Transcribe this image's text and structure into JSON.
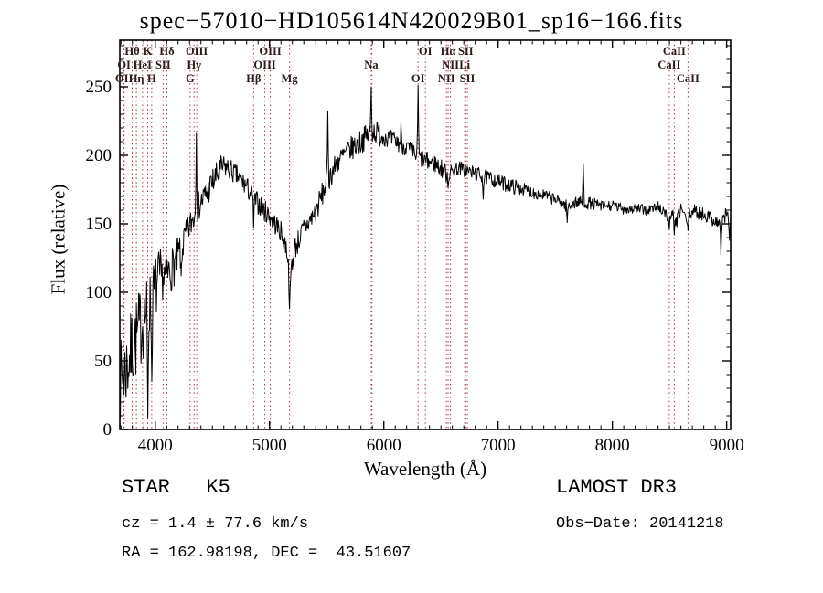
{
  "figure": {
    "footer": {
      "object_type": "STAR   K5",
      "survey": "LAMOST DR3",
      "cz": "cz = 1.4 ± 77.6 km/s",
      "obs_date": "Obs−Date: 20141218",
      "ra_dec": "RA = 162.98198, DEC =  43.51607"
    }
  },
  "chart_data": {
    "type": "line",
    "title": "spec−57010−HD105614N420029B01_sp16−166.fits",
    "xlabel": "Wavelength (Å)",
    "ylabel": "Flux (relative)",
    "xlim": [
      3690,
      9035
    ],
    "ylim": [
      0,
      284
    ],
    "x_major_ticks": [
      4000,
      5000,
      6000,
      7000,
      8000,
      9000
    ],
    "x_minor_step": 100,
    "y_major_ticks": [
      0,
      50,
      100,
      150,
      200,
      250
    ],
    "y_minor_step": 10,
    "grid": false,
    "legend": "none",
    "line_color": "#000000",
    "marker_line_color": "#9e3a3a",
    "label_color": "#2b1a1a",
    "sample_step_angstrom": 5,
    "noise_seed": 7,
    "continuum_anchors": [
      [
        3690,
        35
      ],
      [
        3750,
        45
      ],
      [
        3800,
        60
      ],
      [
        3850,
        70
      ],
      [
        3900,
        82
      ],
      [
        3950,
        90
      ],
      [
        4000,
        103
      ],
      [
        4050,
        110
      ],
      [
        4100,
        112
      ],
      [
        4150,
        118
      ],
      [
        4200,
        125
      ],
      [
        4250,
        138
      ],
      [
        4300,
        148
      ],
      [
        4350,
        158
      ],
      [
        4400,
        166
      ],
      [
        4450,
        172
      ],
      [
        4500,
        180
      ],
      [
        4550,
        186
      ],
      [
        4600,
        192
      ],
      [
        4650,
        190
      ],
      [
        4700,
        186
      ],
      [
        4750,
        182
      ],
      [
        4800,
        177
      ],
      [
        4850,
        170
      ],
      [
        4900,
        165
      ],
      [
        4950,
        160
      ],
      [
        5000,
        156
      ],
      [
        5050,
        150
      ],
      [
        5100,
        144
      ],
      [
        5150,
        132
      ],
      [
        5185,
        115
      ],
      [
        5220,
        132
      ],
      [
        5300,
        146
      ],
      [
        5400,
        158
      ],
      [
        5500,
        180
      ],
      [
        5600,
        196
      ],
      [
        5700,
        204
      ],
      [
        5800,
        210
      ],
      [
        5900,
        218
      ],
      [
        6000,
        214
      ],
      [
        6100,
        210
      ],
      [
        6200,
        206
      ],
      [
        6280,
        200
      ],
      [
        6360,
        196
      ],
      [
        6450,
        194
      ],
      [
        6563,
        186
      ],
      [
        6650,
        191
      ],
      [
        6750,
        188
      ],
      [
        6900,
        184
      ],
      [
        7000,
        181
      ],
      [
        7100,
        178
      ],
      [
        7200,
        176
      ],
      [
        7300,
        173
      ],
      [
        7400,
        171
      ],
      [
        7500,
        168
      ],
      [
        7600,
        163
      ],
      [
        7700,
        166
      ],
      [
        7800,
        165
      ],
      [
        7900,
        163
      ],
      [
        8000,
        163
      ],
      [
        8100,
        161
      ],
      [
        8200,
        161
      ],
      [
        8300,
        160
      ],
      [
        8400,
        162
      ],
      [
        8450,
        160
      ],
      [
        8500,
        152
      ],
      [
        8530,
        156
      ],
      [
        8560,
        150
      ],
      [
        8600,
        162
      ],
      [
        8650,
        152
      ],
      [
        8700,
        160
      ],
      [
        8750,
        158
      ],
      [
        8800,
        157
      ],
      [
        8850,
        155
      ],
      [
        8900,
        152
      ],
      [
        8950,
        150
      ],
      [
        9000,
        158
      ],
      [
        9035,
        150
      ]
    ],
    "noise_segments": [
      [
        3690,
        3900,
        30
      ],
      [
        3900,
        4050,
        24
      ],
      [
        4050,
        4250,
        16
      ],
      [
        4250,
        4600,
        11
      ],
      [
        4600,
        5150,
        8
      ],
      [
        5150,
        5450,
        9
      ],
      [
        5450,
        6000,
        9
      ],
      [
        6000,
        6563,
        7
      ],
      [
        6563,
        7200,
        5.5
      ],
      [
        7200,
        7900,
        4.5
      ],
      [
        7900,
        8400,
        4
      ],
      [
        8400,
        9036,
        5
      ]
    ],
    "spikes_up": [
      [
        4360,
        216,
        8
      ],
      [
        5510,
        232,
        8
      ],
      [
        5890,
        250,
        8
      ],
      [
        6150,
        224,
        6
      ],
      [
        6300,
        251,
        8
      ],
      [
        7745,
        194,
        8
      ]
    ],
    "spikes_down": [
      [
        3935,
        8,
        9
      ],
      [
        3970,
        35,
        8
      ],
      [
        4227,
        112,
        8
      ],
      [
        4861,
        147,
        8
      ],
      [
        5175,
        88,
        12
      ],
      [
        6563,
        176,
        8
      ],
      [
        6870,
        168,
        8
      ],
      [
        7605,
        151,
        8
      ],
      [
        8498,
        146,
        8
      ],
      [
        8542,
        142,
        8
      ],
      [
        8662,
        145,
        8
      ],
      [
        8950,
        127,
        8
      ],
      [
        9025,
        138,
        8
      ]
    ],
    "spectral_lines": [
      {
        "wavelength": 3727,
        "label": "OI",
        "row": 1
      },
      {
        "wavelength": 3727,
        "label": "OII",
        "row": 2
      },
      {
        "wavelength": 3798,
        "label": "Hθ",
        "row": 0
      },
      {
        "wavelength": 3835,
        "label": "Hη",
        "row": 2
      },
      {
        "wavelength": 3889,
        "label": "HeI",
        "row": 1
      },
      {
        "wavelength": 3934,
        "label": "K",
        "row": 0
      },
      {
        "wavelength": 3969,
        "label": "H",
        "row": 2
      },
      {
        "wavelength": 4069,
        "label": "SII",
        "row": 1
      },
      {
        "wavelength": 4102,
        "label": "Hδ",
        "row": 0
      },
      {
        "wavelength": 4305,
        "label": "G",
        "row": 2
      },
      {
        "wavelength": 4340,
        "label": "Hγ",
        "row": 1
      },
      {
        "wavelength": 4363,
        "label": "OIII",
        "row": 0
      },
      {
        "wavelength": 4861,
        "label": "Hβ",
        "row": 2
      },
      {
        "wavelength": 4959,
        "label": "OIII",
        "row": 1
      },
      {
        "wavelength": 5007,
        "label": "OIII",
        "row": 0
      },
      {
        "wavelength": 5175,
        "label": "Mg",
        "row": 2
      },
      {
        "wavelength": 5890,
        "label": "Na",
        "row": 1
      },
      {
        "wavelength": 5896
      },
      {
        "wavelength": 6300,
        "label": "OI",
        "row": 2
      },
      {
        "wavelength": 6364,
        "label": "OI",
        "row": 0
      },
      {
        "wavelength": 6548,
        "label": "NII",
        "row": 2
      },
      {
        "wavelength": 6563,
        "label": "Hα",
        "row": 0
      },
      {
        "wavelength": 6583,
        "label": "NII",
        "row": 1
      },
      {
        "wavelength": 6708,
        "label": "Li",
        "row": 1
      },
      {
        "wavelength": 6717,
        "label": "SII",
        "row": 0
      },
      {
        "wavelength": 6731,
        "label": "SII",
        "row": 2
      },
      {
        "wavelength": 8498,
        "label": "CaII",
        "row": 1
      },
      {
        "wavelength": 8542,
        "label": "CaII",
        "row": 0
      },
      {
        "wavelength": 8662,
        "label": "CaII",
        "row": 2
      }
    ]
  }
}
